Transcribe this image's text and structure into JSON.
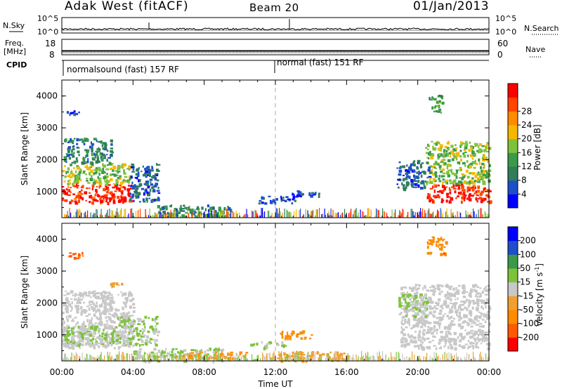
{
  "header": {
    "station": "Adak West (fitACF)",
    "beam": "Beam 20",
    "date": "01/Jan/2013"
  },
  "colors": {
    "power_scale": [
      "#0000ff",
      "#1e4fc8",
      "#2f7d5a",
      "#3b9a4a",
      "#7cc33a",
      "#f5b800",
      "#ff8c00",
      "#ff4500",
      "#ff0000"
    ],
    "velocity_scale": [
      "#ff0000",
      "#ff5a00",
      "#ff8c00",
      "#f0a030",
      "#c8c8c8",
      "#7cc33a",
      "#3b9a4a",
      "#1e4fc8",
      "#0000ff"
    ]
  },
  "chart_data": [
    {
      "type": "line",
      "name": "noise-panel",
      "left_label": "N.Sky",
      "right_label": "N.Search",
      "left_ticks": [
        "10^5",
        "10^0"
      ],
      "right_ticks": [
        "10^5",
        "10^0"
      ],
      "series": [
        {
          "name": "N.Sky",
          "style": "solid"
        },
        {
          "name": "N.Search",
          "style": "dotted"
        }
      ]
    },
    {
      "type": "line",
      "name": "freq-panel",
      "left_label": "Freq. [MHz]",
      "right_label": "Nave",
      "left_ticks": [
        "18",
        "8"
      ],
      "right_ticks": [
        "60",
        "0"
      ],
      "series": [
        {
          "name": "Freq.",
          "style": "solid",
          "value": 10.5
        },
        {
          "name": "Nave",
          "style": "dotted"
        }
      ]
    },
    {
      "type": "table",
      "name": "cpid-panel",
      "label": "CPID",
      "segments": [
        {
          "start_hour": 0,
          "end_hour": 12,
          "text": "normalsound (fast) 157 RF"
        },
        {
          "start_hour": 12,
          "end_hour": 24,
          "text": "normal (fast) 151 RF"
        }
      ]
    },
    {
      "type": "heatmap",
      "name": "power",
      "xlabel": "Time UT",
      "ylabel": "Slant Range [km]",
      "xlim": [
        0,
        24
      ],
      "ylim": [
        180,
        4500
      ],
      "x_ticks": [
        "00:00",
        "04:00",
        "08:00",
        "12:00",
        "16:00",
        "20:00",
        "00:00"
      ],
      "y_ticks": [
        1000,
        2000,
        3000,
        4000
      ],
      "colorbar": {
        "label": "Power [dB]",
        "ticks": [
          4,
          8,
          12,
          16,
          20,
          24,
          28
        ],
        "range": [
          0,
          30
        ]
      },
      "patches": [
        {
          "t0": 0.0,
          "t1": 3.9,
          "r0": 650,
          "r1": 1250,
          "value": 27
        },
        {
          "t0": 0.0,
          "t1": 3.8,
          "r0": 1250,
          "r1": 1900,
          "value": 15
        },
        {
          "t0": 3.8,
          "t1": 5.4,
          "r0": 700,
          "r1": 1900,
          "value": 6
        },
        {
          "t0": 0.1,
          "t1": 2.8,
          "r0": 1900,
          "r1": 2700,
          "value": 9
        },
        {
          "t0": 0.2,
          "t1": 1.0,
          "r0": 3450,
          "r1": 3550,
          "value": 5
        },
        {
          "t0": 5.3,
          "t1": 9.5,
          "r0": 250,
          "r1": 600,
          "value": 9
        },
        {
          "t0": 11.0,
          "t1": 13.2,
          "r0": 650,
          "r1": 880,
          "value": 5
        },
        {
          "t0": 12.9,
          "t1": 14.5,
          "r0": 850,
          "r1": 1050,
          "value": 5
        },
        {
          "t0": 20.5,
          "t1": 24.0,
          "r0": 700,
          "r1": 1250,
          "value": 27
        },
        {
          "t0": 20.4,
          "t1": 24.0,
          "r0": 1250,
          "r1": 2600,
          "value": 15
        },
        {
          "t0": 18.8,
          "t1": 20.6,
          "r0": 1100,
          "r1": 2000,
          "value": 6
        },
        {
          "t0": 20.6,
          "t1": 21.4,
          "r0": 3500,
          "r1": 4050,
          "value": 12
        }
      ]
    },
    {
      "type": "heatmap",
      "name": "velocity",
      "xlabel": "Time UT",
      "ylabel": "Slant Range [km]",
      "xlim": [
        0,
        24
      ],
      "ylim": [
        180,
        4500
      ],
      "x_ticks": [
        "00:00",
        "04:00",
        "08:00",
        "12:00",
        "16:00",
        "20:00",
        "00:00"
      ],
      "y_ticks": [
        1000,
        2000,
        3000,
        4000
      ],
      "colorbar": {
        "label": "Velocity [m s^-1]",
        "ticks": [
          200,
          100,
          50,
          15,
          -15,
          -50,
          -100,
          -200
        ],
        "range": [
          -250,
          250
        ]
      },
      "patches": [
        {
          "t0": 0.0,
          "t1": 4.0,
          "r0": 600,
          "r1": 2400,
          "value": 0
        },
        {
          "t0": 0.0,
          "t1": 3.0,
          "r0": 700,
          "r1": 1300,
          "value": 30
        },
        {
          "t0": 3.0,
          "t1": 5.4,
          "r0": 700,
          "r1": 1600,
          "value": 30
        },
        {
          "t0": 0.2,
          "t1": 1.2,
          "r0": 3400,
          "r1": 3600,
          "value": -150
        },
        {
          "t0": 2.6,
          "t1": 3.4,
          "r0": 2500,
          "r1": 2650,
          "value": -50
        },
        {
          "t0": 4.0,
          "t1": 9.0,
          "r0": 200,
          "r1": 600,
          "value": 30
        },
        {
          "t0": 7.0,
          "t1": 10.5,
          "r0": 250,
          "r1": 500,
          "value": -80
        },
        {
          "t0": 12.2,
          "t1": 14.0,
          "r0": 900,
          "r1": 1150,
          "value": -120
        },
        {
          "t0": 10.5,
          "t1": 12.5,
          "r0": 600,
          "r1": 800,
          "value": 30
        },
        {
          "t0": 12.0,
          "t1": 16.0,
          "r0": 200,
          "r1": 500,
          "value": -60
        },
        {
          "t0": 19.0,
          "t1": 24.0,
          "r0": 600,
          "r1": 2600,
          "value": 0
        },
        {
          "t0": 18.9,
          "t1": 20.5,
          "r0": 1600,
          "r1": 2300,
          "value": 30
        },
        {
          "t0": 20.5,
          "t1": 21.6,
          "r0": 3500,
          "r1": 4100,
          "value": -120
        }
      ]
    }
  ]
}
